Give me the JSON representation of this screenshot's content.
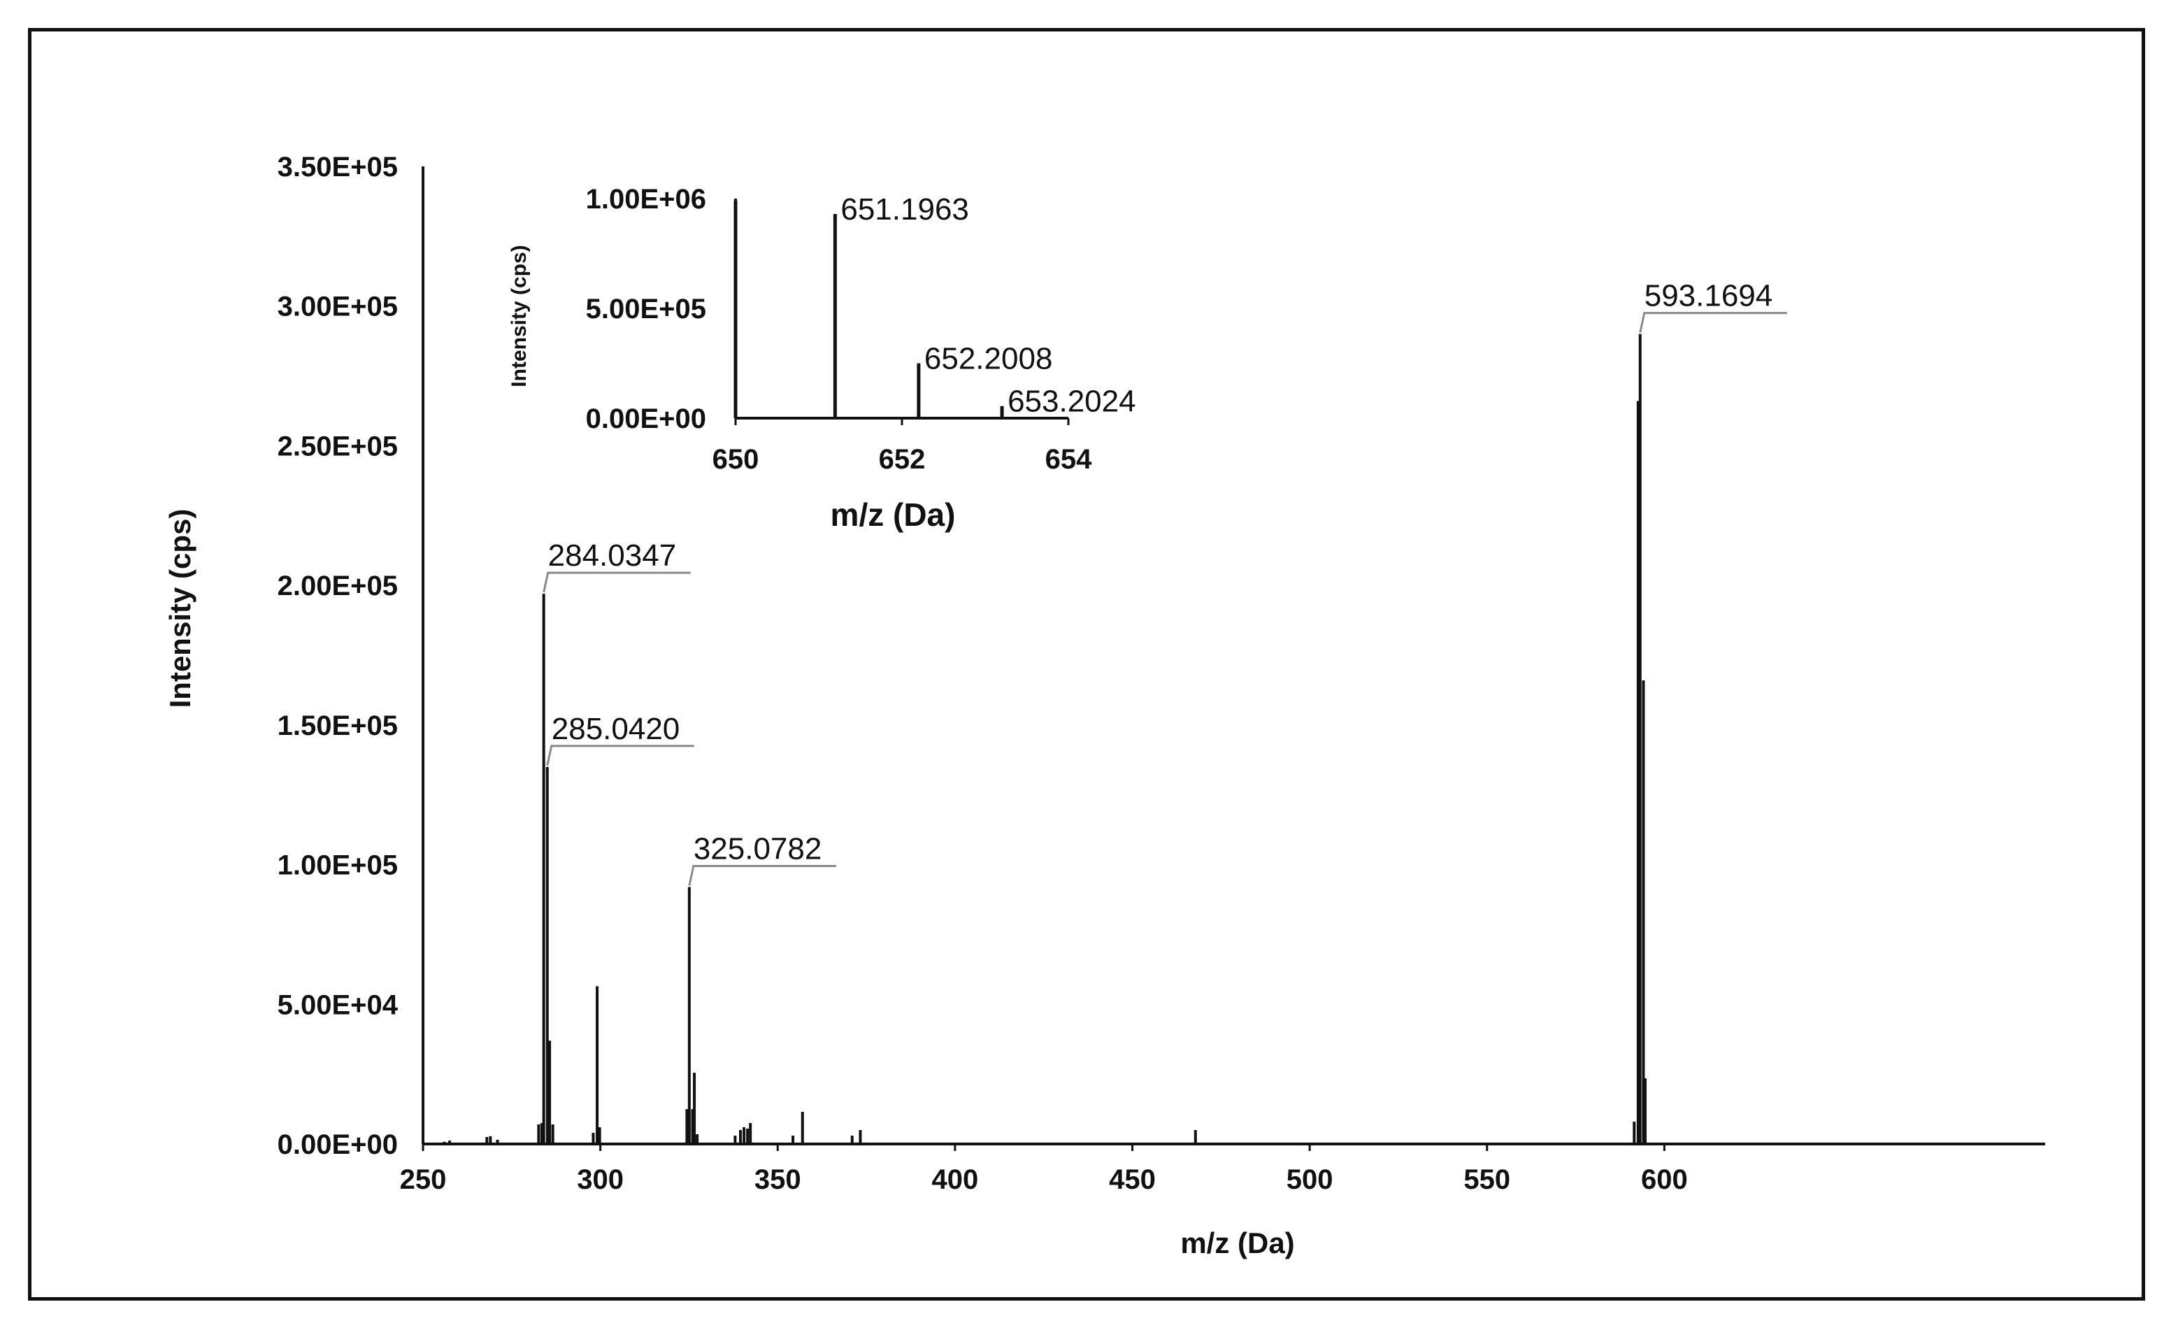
{
  "chart_data": [
    {
      "type": "bar",
      "subtype": "mass-spectrum",
      "xlabel": "m/z (Da)",
      "ylabel": "Intensity (cps)",
      "xlim": [
        250,
        650
      ],
      "ylim": [
        0,
        350000
      ],
      "x_ticks": [
        250,
        300,
        350,
        400,
        450,
        500,
        550,
        600
      ],
      "y_ticks": [
        {
          "value": 0,
          "label": "0.00E+00"
        },
        {
          "value": 50000,
          "label": "5.00E+04"
        },
        {
          "value": 100000,
          "label": "1.00E+05"
        },
        {
          "value": 150000,
          "label": "1.50E+05"
        },
        {
          "value": 200000,
          "label": "2.00E+05"
        },
        {
          "value": 250000,
          "label": "2.50E+05"
        },
        {
          "value": 300000,
          "label": "3.00E+05"
        },
        {
          "value": 350000,
          "label": "3.50E+05"
        }
      ],
      "peaks": [
        {
          "x": 256.0,
          "y": 800
        },
        {
          "x": 257.5,
          "y": 1200
        },
        {
          "x": 268.0,
          "y": 2500
        },
        {
          "x": 269.0,
          "y": 2800
        },
        {
          "x": 271.0,
          "y": 1500
        },
        {
          "x": 282.6,
          "y": 7000
        },
        {
          "x": 283.5,
          "y": 7500
        },
        {
          "x": 284.0347,
          "y": 197000
        },
        {
          "x": 285.042,
          "y": 135000
        },
        {
          "x": 285.7,
          "y": 37000
        },
        {
          "x": 286.6,
          "y": 7000
        },
        {
          "x": 298.0,
          "y": 4000
        },
        {
          "x": 299.1,
          "y": 56500
        },
        {
          "x": 299.8,
          "y": 6000
        },
        {
          "x": 324.4,
          "y": 12500
        },
        {
          "x": 325.0782,
          "y": 92000
        },
        {
          "x": 326.0,
          "y": 12500
        },
        {
          "x": 326.5,
          "y": 25500
        },
        {
          "x": 327.3,
          "y": 3500
        },
        {
          "x": 338.0,
          "y": 3000
        },
        {
          "x": 339.5,
          "y": 5000
        },
        {
          "x": 340.5,
          "y": 6000
        },
        {
          "x": 341.5,
          "y": 5500
        },
        {
          "x": 342.3,
          "y": 7500
        },
        {
          "x": 354.3,
          "y": 3000
        },
        {
          "x": 357.0,
          "y": 11500
        },
        {
          "x": 371.0,
          "y": 3000
        },
        {
          "x": 373.3,
          "y": 5000
        },
        {
          "x": 467.8,
          "y": 5000
        },
        {
          "x": 591.5,
          "y": 8000
        },
        {
          "x": 592.6,
          "y": 266000
        },
        {
          "x": 593.1694,
          "y": 290000
        },
        {
          "x": 594.1,
          "y": 166000
        },
        {
          "x": 594.6,
          "y": 23500
        }
      ],
      "annotations": [
        {
          "x": 284.0347,
          "y": 197000,
          "label": "284.0347"
        },
        {
          "x": 285.042,
          "y": 135000,
          "label": "285.0420"
        },
        {
          "x": 325.0782,
          "y": 92000,
          "label": "325.0782"
        },
        {
          "x": 593.1694,
          "y": 290000,
          "label": "593.1694"
        }
      ]
    },
    {
      "type": "bar",
      "subtype": "mass-spectrum-inset",
      "xlabel": "m/z (Da)",
      "ylabel": "Intensity (cps)",
      "xlim": [
        650,
        654
      ],
      "ylim": [
        0,
        1000000
      ],
      "x_ticks": [
        650,
        652,
        654
      ],
      "y_ticks": [
        {
          "value": 0,
          "label": "0.00E+00"
        },
        {
          "value": 500000,
          "label": "5.00E+05"
        },
        {
          "value": 1000000,
          "label": "1.00E+06"
        }
      ],
      "peaks": [
        {
          "x": 650.0,
          "y": 990000
        },
        {
          "x": 651.1963,
          "y": 930000
        },
        {
          "x": 652.2008,
          "y": 250000
        },
        {
          "x": 653.2024,
          "y": 55000
        }
      ],
      "annotations": [
        {
          "x": 651.1963,
          "y": 930000,
          "label": "651.1963"
        },
        {
          "x": 652.2008,
          "y": 250000,
          "label": "652.2008"
        },
        {
          "x": 653.2024,
          "y": 55000,
          "label": "653.2024"
        }
      ]
    }
  ]
}
